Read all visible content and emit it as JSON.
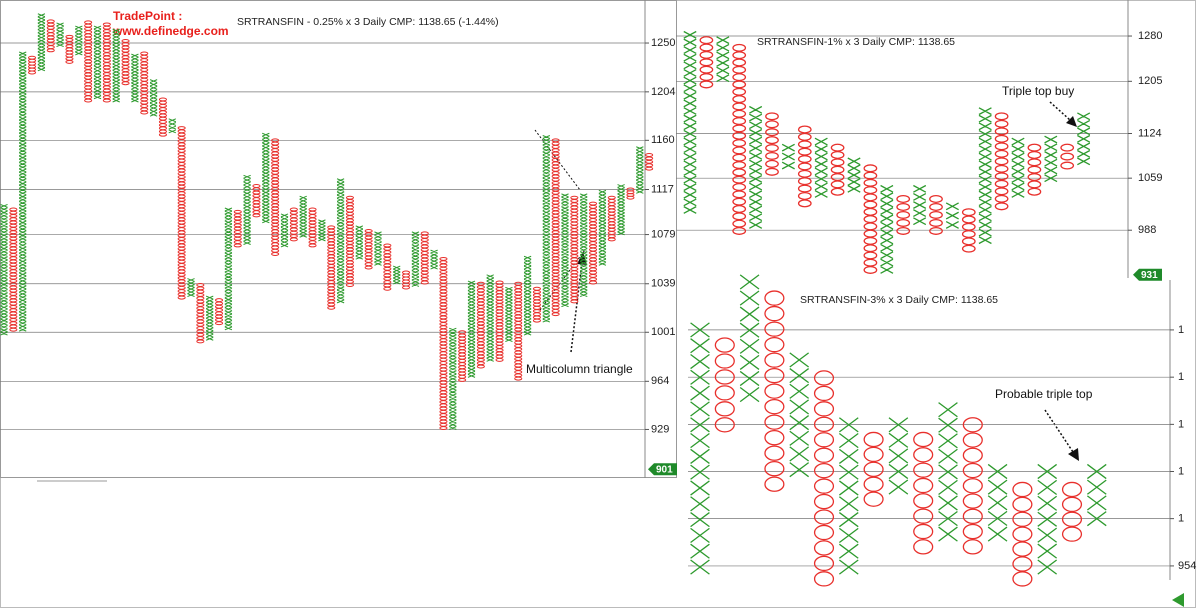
{
  "brand": [
    "TradePoint :",
    "www.definedge.com"
  ],
  "chart_data": [
    {
      "type": "pnf",
      "title": "SRTRANSFIN - 0.25% x 3 Daily CMP: 1138.65 (-1.44%)",
      "box_pct": 0.25,
      "log_scale": true,
      "grid": true,
      "x_color": "#2e9a2e",
      "o_color": "#e8302c",
      "ylim": [
        895,
        1292
      ],
      "yticks": [
        1250,
        1204,
        1160,
        1117,
        1079,
        1039,
        1001,
        964,
        929
      ],
      "last_price": 901,
      "annotations": [
        "Multicolumn triangle"
      ],
      "columns": [
        {
          "kind": "X",
          "low": 1000,
          "high": 1103
        },
        {
          "kind": "O",
          "low": 1003,
          "high": 1100
        },
        {
          "kind": "X",
          "low": 1003,
          "high": 1240
        },
        {
          "kind": "O",
          "low": 1222,
          "high": 1236
        },
        {
          "kind": "X",
          "low": 1225,
          "high": 1277
        },
        {
          "kind": "O",
          "low": 1243,
          "high": 1271
        },
        {
          "kind": "X",
          "low": 1248,
          "high": 1268
        },
        {
          "kind": "O",
          "low": 1232,
          "high": 1256
        },
        {
          "kind": "X",
          "low": 1240,
          "high": 1265
        },
        {
          "kind": "O",
          "low": 1196,
          "high": 1270
        },
        {
          "kind": "X",
          "low": 1199,
          "high": 1265
        },
        {
          "kind": "O",
          "low": 1196,
          "high": 1268
        },
        {
          "kind": "X",
          "low": 1196,
          "high": 1262
        },
        {
          "kind": "O",
          "low": 1212,
          "high": 1252
        },
        {
          "kind": "X",
          "low": 1196,
          "high": 1238
        },
        {
          "kind": "O",
          "low": 1185,
          "high": 1240
        },
        {
          "kind": "X",
          "low": 1183,
          "high": 1214
        },
        {
          "kind": "O",
          "low": 1165,
          "high": 1197
        },
        {
          "kind": "X",
          "low": 1168,
          "high": 1178
        },
        {
          "kind": "O",
          "low": 1028,
          "high": 1171
        },
        {
          "kind": "X",
          "low": 1030,
          "high": 1042
        },
        {
          "kind": "O",
          "low": 994,
          "high": 1038
        },
        {
          "kind": "X",
          "low": 996,
          "high": 1028
        },
        {
          "kind": "O",
          "low": 1008,
          "high": 1026
        },
        {
          "kind": "X",
          "low": 1004,
          "high": 1100
        },
        {
          "kind": "O",
          "low": 1070,
          "high": 1098
        },
        {
          "kind": "X",
          "low": 1072,
          "high": 1128
        },
        {
          "kind": "O",
          "low": 1095,
          "high": 1120
        },
        {
          "kind": "X",
          "low": 1090,
          "high": 1165
        },
        {
          "kind": "O",
          "low": 1063,
          "high": 1160
        },
        {
          "kind": "X",
          "low": 1070,
          "high": 1095
        },
        {
          "kind": "O",
          "low": 1075,
          "high": 1100
        },
        {
          "kind": "X",
          "low": 1078,
          "high": 1110
        },
        {
          "kind": "O",
          "low": 1070,
          "high": 1100
        },
        {
          "kind": "X",
          "low": 1075,
          "high": 1090
        },
        {
          "kind": "O",
          "low": 1020,
          "high": 1085
        },
        {
          "kind": "X",
          "low": 1025,
          "high": 1125
        },
        {
          "kind": "O",
          "low": 1038,
          "high": 1110
        },
        {
          "kind": "X",
          "low": 1060,
          "high": 1085
        },
        {
          "kind": "O",
          "low": 1052,
          "high": 1082
        },
        {
          "kind": "X",
          "low": 1055,
          "high": 1080
        },
        {
          "kind": "O",
          "low": 1035,
          "high": 1070
        },
        {
          "kind": "X",
          "low": 1040,
          "high": 1052
        },
        {
          "kind": "O",
          "low": 1036,
          "high": 1048
        },
        {
          "kind": "X",
          "low": 1038,
          "high": 1080
        },
        {
          "kind": "O",
          "low": 1040,
          "high": 1080
        },
        {
          "kind": "X",
          "low": 1052,
          "high": 1065
        },
        {
          "kind": "O",
          "low": 930,
          "high": 1059
        },
        {
          "kind": "X",
          "low": 930,
          "high": 1003
        },
        {
          "kind": "O",
          "low": 965,
          "high": 1001
        },
        {
          "kind": "X",
          "low": 968,
          "high": 1040
        },
        {
          "kind": "O",
          "low": 975,
          "high": 1039
        },
        {
          "kind": "X",
          "low": 980,
          "high": 1045
        },
        {
          "kind": "O",
          "low": 980,
          "high": 1040
        },
        {
          "kind": "X",
          "low": 995,
          "high": 1035
        },
        {
          "kind": "O",
          "low": 966,
          "high": 1039
        },
        {
          "kind": "X",
          "low": 1000,
          "high": 1060
        },
        {
          "kind": "O",
          "low": 1010,
          "high": 1035
        },
        {
          "kind": "X",
          "low": 1010,
          "high": 1163
        },
        {
          "kind": "O",
          "low": 1015,
          "high": 1160
        },
        {
          "kind": "X",
          "low": 1022,
          "high": 1112
        },
        {
          "kind": "O",
          "low": 1025,
          "high": 1110
        },
        {
          "kind": "X",
          "low": 1030,
          "high": 1112
        },
        {
          "kind": "O",
          "low": 1040,
          "high": 1105
        },
        {
          "kind": "X",
          "low": 1055,
          "high": 1115
        },
        {
          "kind": "O",
          "low": 1075,
          "high": 1110
        },
        {
          "kind": "X",
          "low": 1080,
          "high": 1120
        },
        {
          "kind": "O",
          "low": 1110,
          "high": 1117
        },
        {
          "kind": "X",
          "low": 1115,
          "high": 1153
        },
        {
          "kind": "O",
          "low": 1135,
          "high": 1147
        }
      ]
    },
    {
      "type": "pnf",
      "title": "SRTRANSFIN-1%  x 3 Daily CMP: 1138.65",
      "box_pct": 1,
      "log_scale": true,
      "grid": true,
      "x_color": "#2e9a2e",
      "o_color": "#e8302c",
      "ylim": [
        927,
        1343
      ],
      "yticks": [
        1280,
        1205,
        1124,
        1059,
        988
      ],
      "last_price": 931,
      "annotations": [
        "Triple top buy"
      ],
      "columns": [
        {
          "kind": "X",
          "low": 1015,
          "high": 1282
        },
        {
          "kind": "O",
          "low": 1200,
          "high": 1273
        },
        {
          "kind": "X",
          "low": 1210,
          "high": 1273
        },
        {
          "kind": "O",
          "low": 987,
          "high": 1260
        },
        {
          "kind": "X",
          "low": 995,
          "high": 1160
        },
        {
          "kind": "O",
          "low": 1068,
          "high": 1150
        },
        {
          "kind": "X",
          "low": 1077,
          "high": 1103
        },
        {
          "kind": "O",
          "low": 1024,
          "high": 1130
        },
        {
          "kind": "X",
          "low": 1037,
          "high": 1112
        },
        {
          "kind": "O",
          "low": 1040,
          "high": 1103
        },
        {
          "kind": "X",
          "low": 1044,
          "high": 1083
        },
        {
          "kind": "O",
          "low": 937,
          "high": 1073
        },
        {
          "kind": "X",
          "low": 937,
          "high": 1044
        },
        {
          "kind": "O",
          "low": 987,
          "high": 1030
        },
        {
          "kind": "X",
          "low": 1000,
          "high": 1044
        },
        {
          "kind": "O",
          "low": 987,
          "high": 1030
        },
        {
          "kind": "X",
          "low": 995,
          "high": 1020
        },
        {
          "kind": "O",
          "low": 964,
          "high": 1012
        },
        {
          "kind": "X",
          "low": 975,
          "high": 1158
        },
        {
          "kind": "O",
          "low": 1020,
          "high": 1150
        },
        {
          "kind": "X",
          "low": 1037,
          "high": 1112
        },
        {
          "kind": "O",
          "low": 1040,
          "high": 1103
        },
        {
          "kind": "X",
          "low": 1059,
          "high": 1115
        },
        {
          "kind": "O",
          "low": 1077,
          "high": 1103
        },
        {
          "kind": "X",
          "low": 1083,
          "high": 1150
        }
      ]
    },
    {
      "type": "pnf",
      "title": "SRTRANSFIN-3%  x 3 Daily CMP: 1138.65",
      "box_pct": 3,
      "log_scale": true,
      "grid": true,
      "x_color": "#2e9a2e",
      "o_color": "#e8302c",
      "ylim": [
        929,
        1636
      ],
      "yticks": [
        {
          "value": 1489,
          "label": "1"
        },
        {
          "value": 1362,
          "label": "1"
        },
        {
          "value": 1246,
          "label": "1"
        },
        {
          "value": 1140,
          "label": "1"
        },
        {
          "value": 1043,
          "label": "1"
        },
        954
      ],
      "annotations": [
        "Probable triple top"
      ],
      "columns": [
        {
          "kind": "X",
          "low": 952,
          "high": 1489
        },
        {
          "kind": "O",
          "low": 1245,
          "high": 1447
        },
        {
          "kind": "X",
          "low": 1318,
          "high": 1630
        },
        {
          "kind": "O",
          "low": 1113,
          "high": 1581
        },
        {
          "kind": "X",
          "low": 1144,
          "high": 1407
        },
        {
          "kind": "O",
          "low": 931,
          "high": 1360
        },
        {
          "kind": "X",
          "low": 952,
          "high": 1245
        },
        {
          "kind": "O",
          "low": 1082,
          "high": 1211
        },
        {
          "kind": "X",
          "low": 1107,
          "high": 1245
        },
        {
          "kind": "O",
          "low": 989,
          "high": 1211
        },
        {
          "kind": "X",
          "low": 1013,
          "high": 1281
        },
        {
          "kind": "O",
          "low": 989,
          "high": 1245
        },
        {
          "kind": "X",
          "low": 1013,
          "high": 1140
        },
        {
          "kind": "O",
          "low": 931,
          "high": 1102
        },
        {
          "kind": "X",
          "low": 952,
          "high": 1140
        },
        {
          "kind": "O",
          "low": 1013,
          "high": 1102
        },
        {
          "kind": "X",
          "low": 1043,
          "high": 1140
        }
      ]
    }
  ]
}
